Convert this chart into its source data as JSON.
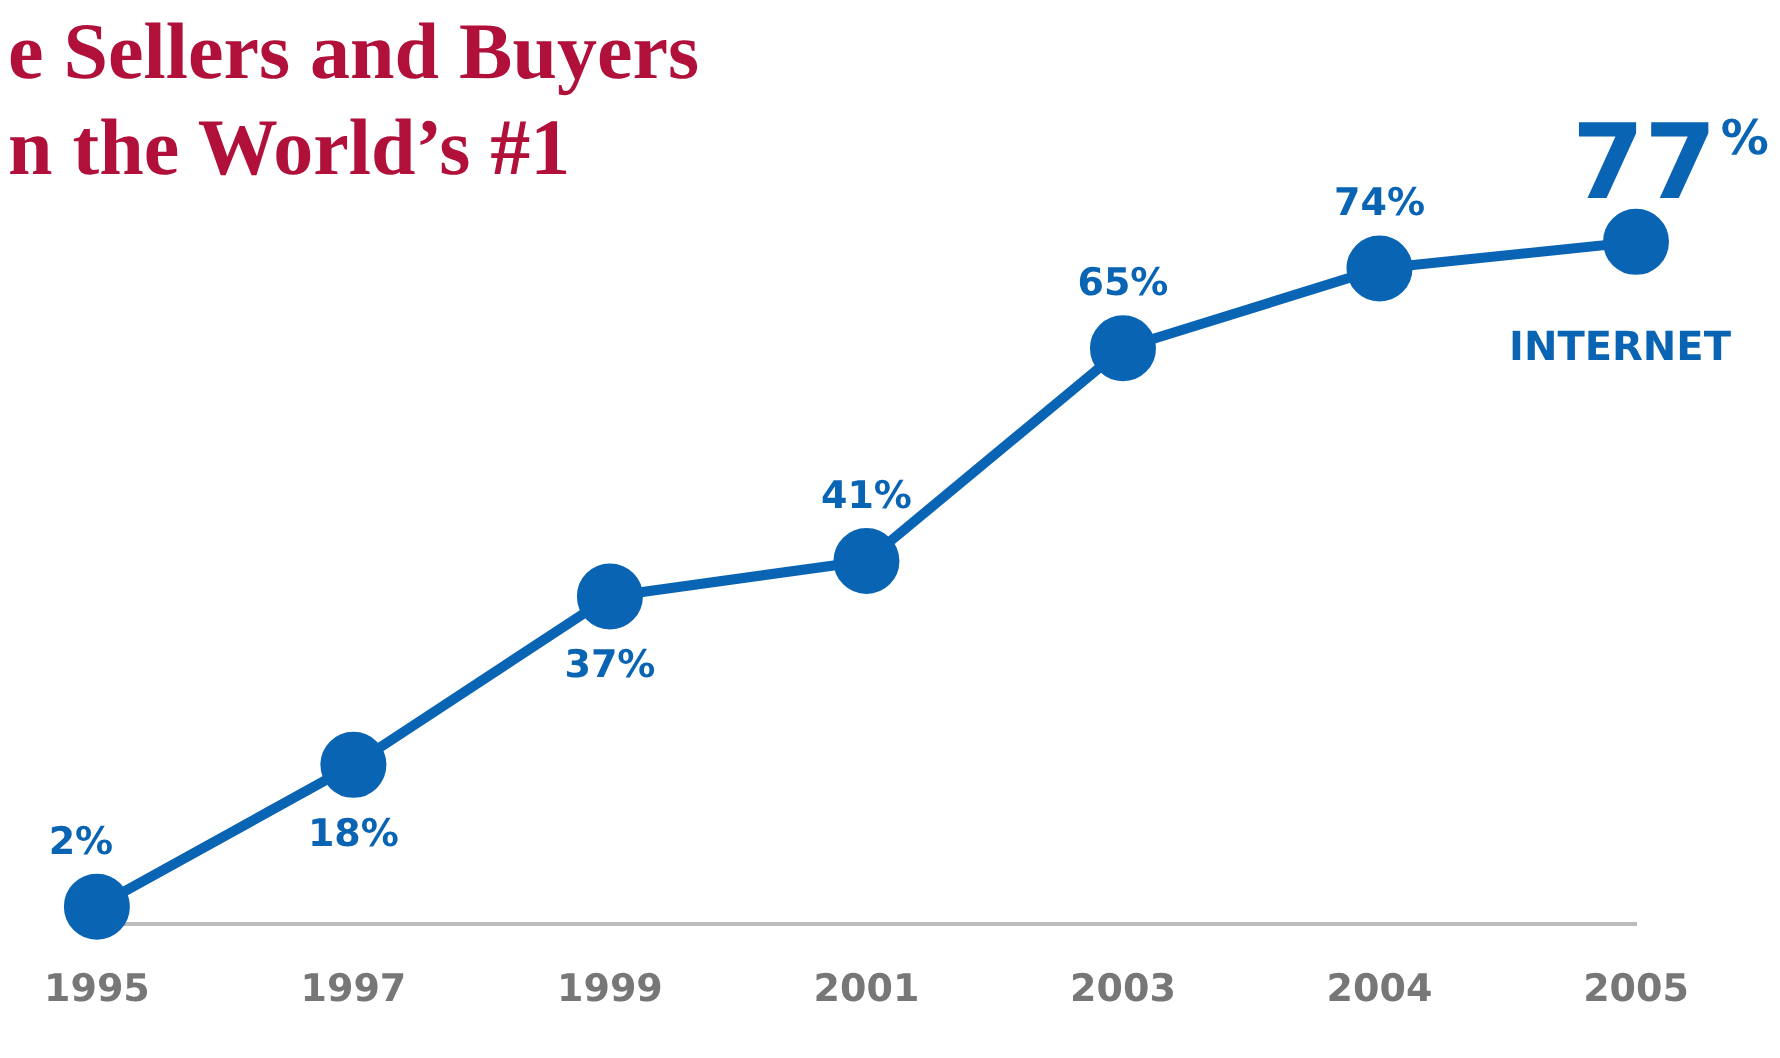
{
  "chart_data": {
    "type": "line",
    "title": "e Sellers and Buyers\nn the World’s #1",
    "categories": [
      "1995",
      "1997",
      "1999",
      "2001",
      "2003",
      "2004",
      "2005"
    ],
    "series": [
      {
        "name": "INTERNET",
        "color": "#0a64b4",
        "values": [
          2,
          18,
          37,
          41,
          65,
          74,
          77
        ],
        "value_labels": [
          "2%",
          "18%",
          "37%",
          "41%",
          "65%",
          "74%",
          "77%"
        ]
      }
    ],
    "tick_labels": "x",
    "grid": false,
    "legend": false,
    "marker": "circle",
    "line_style": "solid"
  }
}
